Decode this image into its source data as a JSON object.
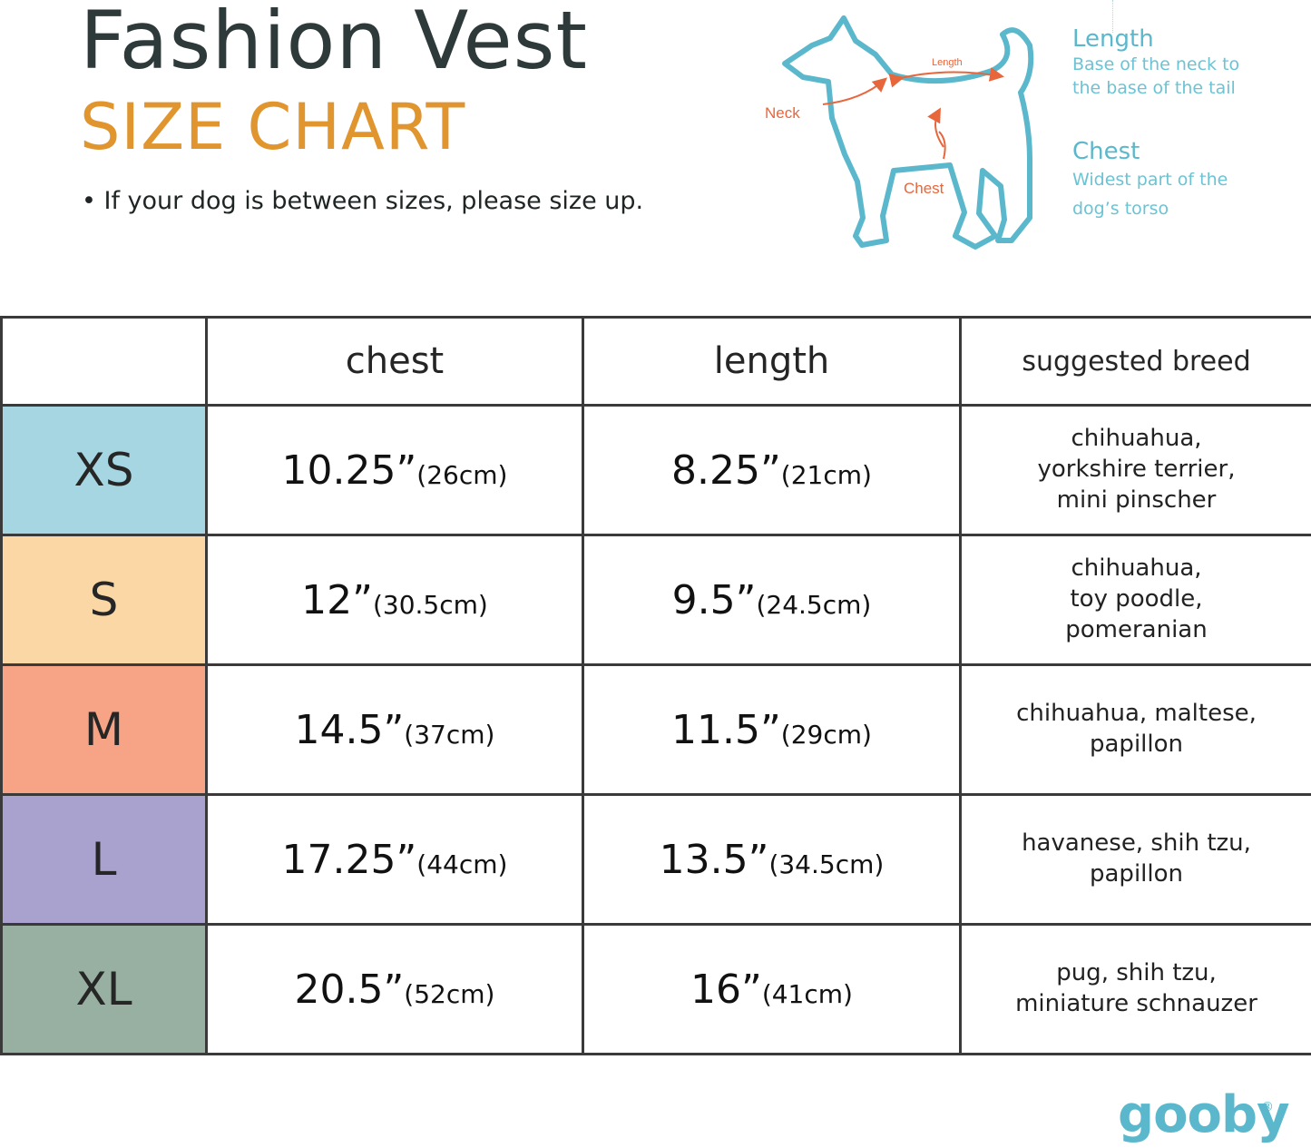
{
  "header": {
    "title": "Fashion Vest",
    "subtitle": "SIZE CHART",
    "note": "• If your dog is between sizes, please size up."
  },
  "diagram": {
    "neck_label": "Neck",
    "length_label": "Length",
    "chest_label": "Chest",
    "outline_color": "#5bb8cc",
    "arrow_color": "#e8663b"
  },
  "legend": {
    "length": {
      "title": "Length",
      "desc_line1": "Base of the neck to",
      "desc_line2": "the base of the tail"
    },
    "chest": {
      "title": "Chest",
      "desc_line1": "Widest part of the",
      "desc_line2": "dog’s torso"
    }
  },
  "table": {
    "headers": {
      "size": "",
      "chest": "chest",
      "length": "length",
      "breed": "suggested breed"
    },
    "rows": [
      {
        "size": "XS",
        "color": "#a5d6e2",
        "chest_in": "10.25”",
        "chest_cm": "(26cm)",
        "length_in": "8.25”",
        "length_cm": "(21cm)",
        "breed": [
          "chihuahua,",
          "yorkshire terrier,",
          "mini pinscher"
        ]
      },
      {
        "size": "S",
        "color": "#fcd7a6",
        "chest_in": "12”",
        "chest_cm": "(30.5cm)",
        "length_in": "9.5”",
        "length_cm": "(24.5cm)",
        "breed": [
          "chihuahua,",
          "toy poodle,",
          "pomeranian"
        ]
      },
      {
        "size": "M",
        "color": "#f6a386",
        "chest_in": "14.5”",
        "chest_cm": "(37cm)",
        "length_in": "11.5”",
        "length_cm": "(29cm)",
        "breed": [
          "chihuahua, maltese,",
          "papillon"
        ]
      },
      {
        "size": "L",
        "color": "#a9a2cf",
        "chest_in": "17.25”",
        "chest_cm": "(44cm)",
        "length_in": "13.5”",
        "length_cm": "(34.5cm)",
        "breed": [
          "havanese, shih tzu,",
          "papillon"
        ]
      },
      {
        "size": "XL",
        "color": "#97b0a1",
        "chest_in": "20.5”",
        "chest_cm": "(52cm)",
        "length_in": "16”",
        "length_cm": "(41cm)",
        "breed": [
          "pug, shih tzu,",
          "miniature schnauzer"
        ]
      }
    ]
  },
  "brand": {
    "name": "gooby",
    "mark": "®"
  }
}
